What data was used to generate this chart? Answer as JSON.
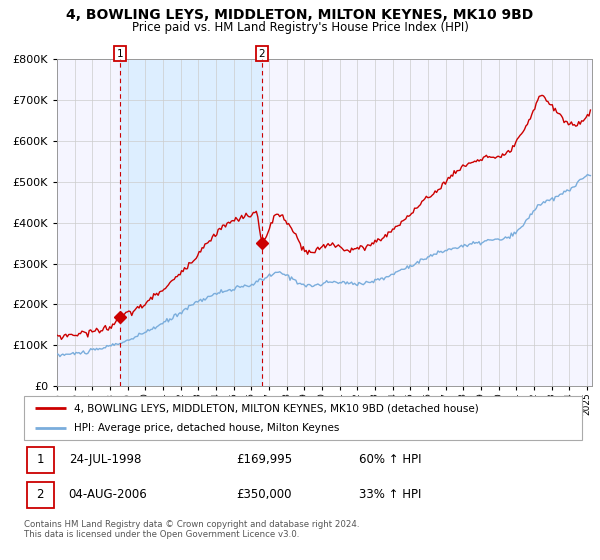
{
  "title": "4, BOWLING LEYS, MIDDLETON, MILTON KEYNES, MK10 9BD",
  "subtitle": "Price paid vs. HM Land Registry's House Price Index (HPI)",
  "legend_line1": "4, BOWLING LEYS, MIDDLETON, MILTON KEYNES, MK10 9BD (detached house)",
  "legend_line2": "HPI: Average price, detached house, Milton Keynes",
  "sale1_date": "24-JUL-1998",
  "sale1_price": "£169,995",
  "sale1_hpi": "60% ↑ HPI",
  "sale2_date": "04-AUG-2006",
  "sale2_price": "£350,000",
  "sale2_hpi": "33% ↑ HPI",
  "footer": "Contains HM Land Registry data © Crown copyright and database right 2024.\nThis data is licensed under the Open Government Licence v3.0.",
  "line1_color": "#cc0000",
  "line2_color": "#7aaddc",
  "marker_color": "#cc0000",
  "vline_color": "#cc0000",
  "shade_color": "#ddeeff",
  "grid_color": "#cccccc",
  "bg_color": "#f5f5ff",
  "ylim": [
    0,
    800000
  ],
  "yticks": [
    0,
    100000,
    200000,
    300000,
    400000,
    500000,
    600000,
    700000,
    800000
  ],
  "sale1_x": 1998.56,
  "sale1_y": 169995,
  "sale2_x": 2006.59,
  "sale2_y": 350000,
  "xlim_left": 1995.0,
  "xlim_right": 2025.3
}
